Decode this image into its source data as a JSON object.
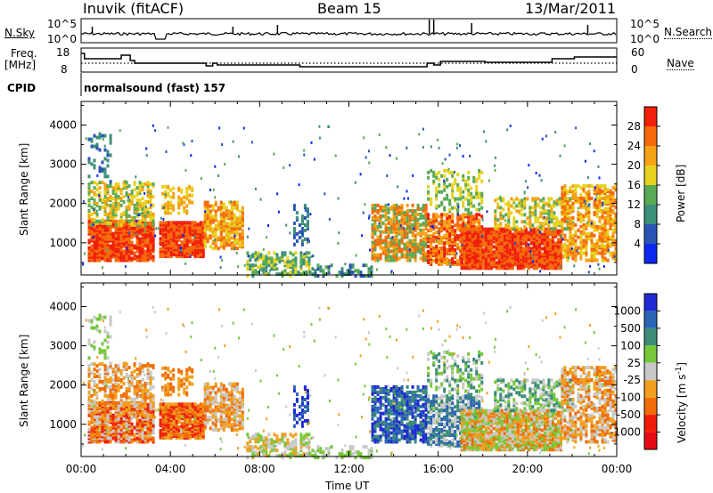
{
  "header": {
    "station": "Inuvik (fitACF)",
    "beam": "Beam 15",
    "date": "13/Mar/2011"
  },
  "panels": {
    "nsky": {
      "left_label": "N.Sky",
      "right_label": "N.Search",
      "left_ticks": [
        "10^5",
        "10^0"
      ],
      "right_ticks": [
        "10^5",
        "10^0"
      ]
    },
    "freq": {
      "left_label_line1": "Freq.",
      "left_label_line2": "[MHz]",
      "right_label": "Nave",
      "left_ticks": [
        "18",
        "8"
      ],
      "right_ticks": [
        "60",
        "0"
      ]
    },
    "cpid": {
      "label": "CPID",
      "value": "normalsound (fast) 157"
    }
  },
  "chart_data": [
    {
      "type": "heatmap",
      "name": "power",
      "ylabel": "Slant Range [km]",
      "yticks": [
        1000,
        2000,
        3000,
        4000
      ],
      "ylim": [
        180,
        4600
      ],
      "xlim": [
        0,
        24
      ],
      "colorbar": {
        "title": "Power [dB]",
        "tick_labels": [
          "4",
          "8",
          "12",
          "16",
          "20",
          "24",
          "28"
        ],
        "colors": [
          "#0a28f0",
          "#2a55b5",
          "#3d8f7a",
          "#5aaa55",
          "#e6d21e",
          "#f5a214",
          "#f56a0a",
          "#f01e0a"
        ]
      }
    },
    {
      "type": "heatmap",
      "name": "velocity",
      "ylabel": "Slant Range [km]",
      "yticks": [
        1000,
        2000,
        3000,
        4000
      ],
      "ylim": [
        180,
        4600
      ],
      "xlim": [
        0,
        24
      ],
      "xlabel": "Time UT",
      "xtick_labels": [
        "00:00",
        "04:00",
        "08:00",
        "12:00",
        "16:00",
        "20:00",
        "00:00"
      ],
      "colorbar": {
        "title": "Velocity [m s^-1]",
        "tick_labels": [
          "1000",
          "500",
          "100",
          "25",
          "-25",
          "-100",
          "-500",
          "-1000"
        ],
        "colors": [
          "#1e2ad2",
          "#2a64b4",
          "#3c8c78",
          "#76c838",
          "#c8c8c8",
          "#f0a01e",
          "#f06e0a",
          "#ee1e0a",
          "#e60a14"
        ]
      }
    }
  ]
}
